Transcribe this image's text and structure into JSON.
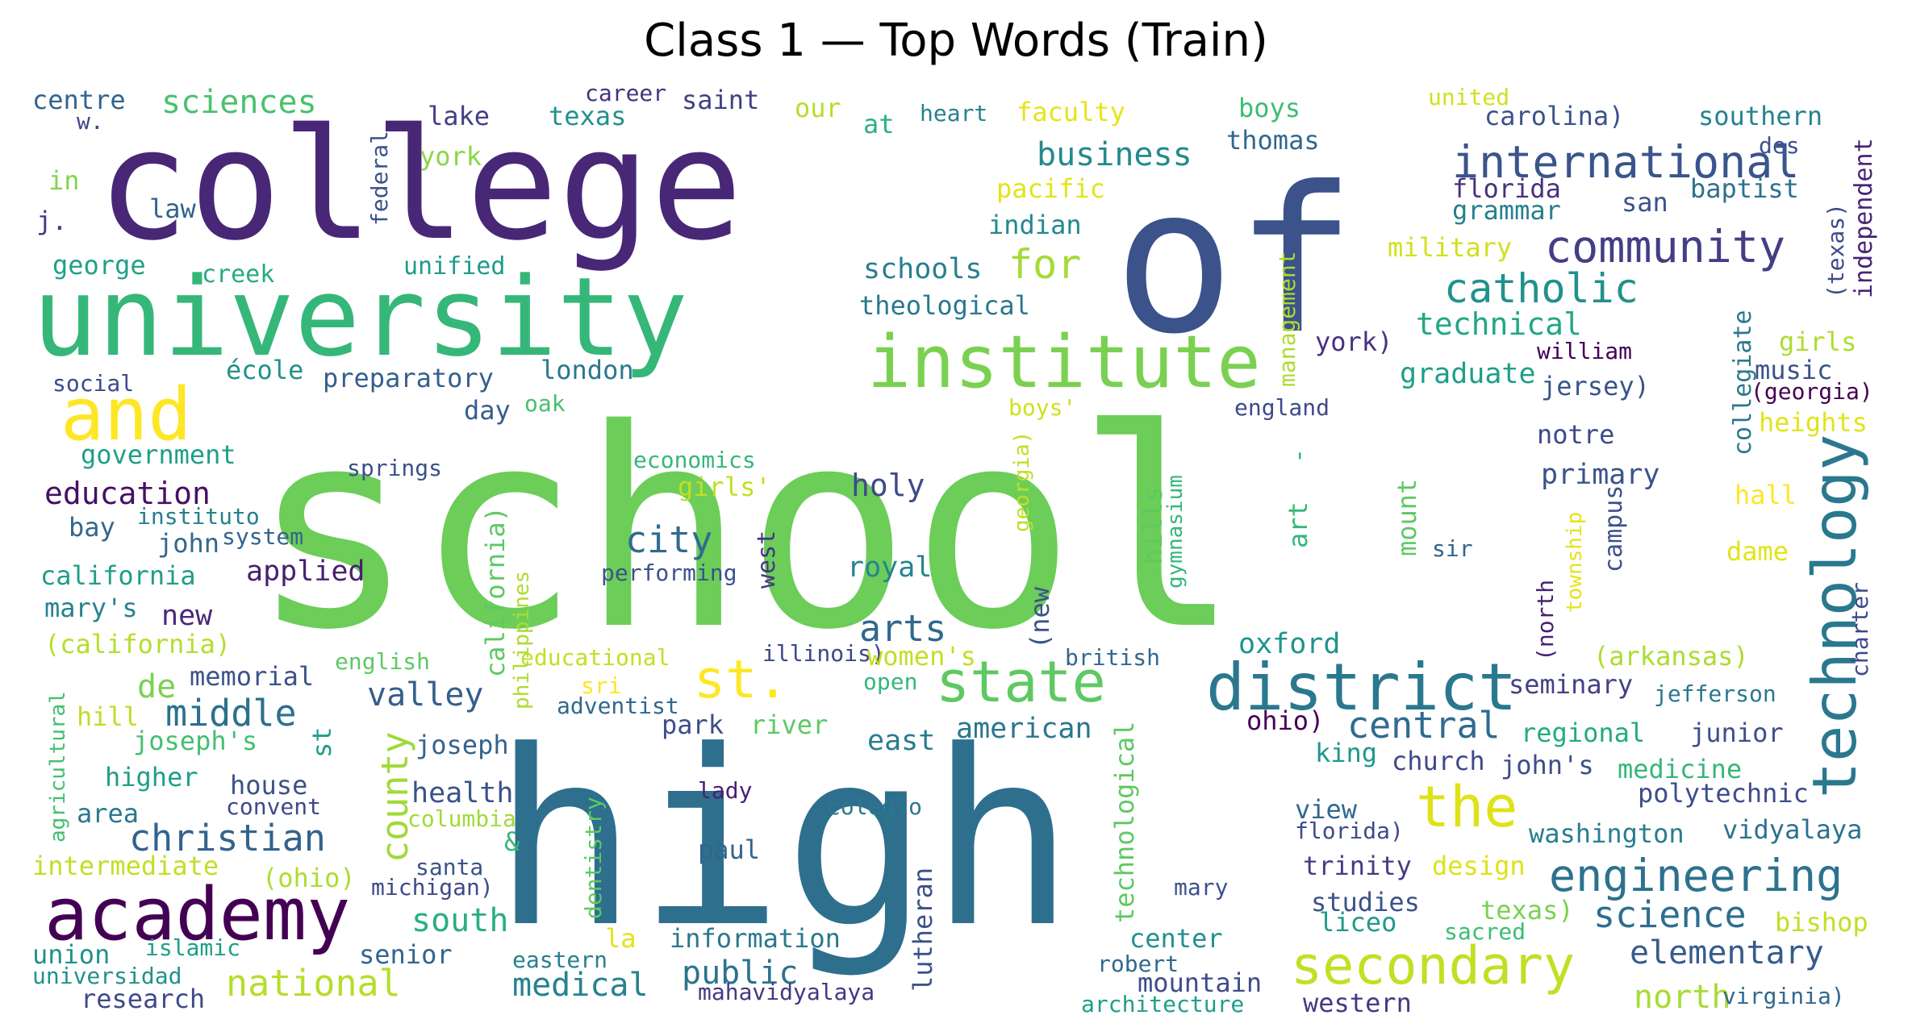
{
  "chart_data": {
    "type": "wordcloud",
    "title": "Class 1 — Top Words (Train)",
    "palette": "viridis",
    "words": [
      {
        "text": "school",
        "color": "#6ccd59"
      },
      {
        "text": "high",
        "color": "#2e6f8e"
      },
      {
        "text": "college",
        "color": "#482777"
      },
      {
        "text": "of",
        "color": "#3b528b"
      },
      {
        "text": "university",
        "color": "#35b779"
      },
      {
        "text": "academy",
        "color": "#440154"
      },
      {
        "text": "institute",
        "color": "#7ad151"
      },
      {
        "text": "district",
        "color": "#2a788e"
      },
      {
        "text": "and",
        "color": "#fde725"
      },
      {
        "text": "technology",
        "color": "#2a788e"
      },
      {
        "text": "secondary",
        "color": "#c2df23"
      },
      {
        "text": "state",
        "color": "#5ec962"
      },
      {
        "text": "the",
        "color": "#dde318"
      },
      {
        "text": "st.",
        "color": "#fde725"
      },
      {
        "text": "engineering",
        "color": "#2c728e"
      },
      {
        "text": "community",
        "color": "#433e85"
      },
      {
        "text": "international",
        "color": "#3a548c"
      },
      {
        "text": "catholic",
        "color": "#21918c"
      },
      {
        "text": "christian",
        "color": "#33638d"
      },
      {
        "text": "county",
        "color": "#9fda3a"
      },
      {
        "text": "middle",
        "color": "#2d708e"
      },
      {
        "text": "arts",
        "color": "#31688e"
      },
      {
        "text": "city",
        "color": "#2f6c8e"
      },
      {
        "text": "national",
        "color": "#b5de2b"
      },
      {
        "text": "central",
        "color": "#2f6b8e"
      },
      {
        "text": "science",
        "color": "#2e6e8e"
      },
      {
        "text": "for",
        "color": "#a5db36"
      },
      {
        "text": "elementary",
        "color": "#365c8d"
      },
      {
        "text": "public",
        "color": "#2c738e"
      },
      {
        "text": "medical",
        "color": "#26828e"
      },
      {
        "text": "business",
        "color": "#238a8d"
      },
      {
        "text": "valley",
        "color": "#355f8d"
      },
      {
        "text": "south",
        "color": "#29af7f"
      },
      {
        "text": "education",
        "color": "#471063"
      },
      {
        "text": "technical",
        "color": "#22a785"
      },
      {
        "text": "sciences",
        "color": "#4ac16d"
      },
      {
        "text": "holy",
        "color": "#3e4a89"
      },
      {
        "text": "north",
        "color": "#a8db34"
      },
      {
        "text": "de",
        "color": "#7ad151"
      },
      {
        "text": "new",
        "color": "#482979"
      },
      {
        "text": "royal",
        "color": "#25858e"
      },
      {
        "text": "graduate",
        "color": "#1f9e89"
      },
      {
        "text": "health",
        "color": "#3b528b"
      },
      {
        "text": "schools",
        "color": "#277f8e"
      },
      {
        "text": "applied",
        "color": "#481f70"
      },
      {
        "text": "primary",
        "color": "#3a538b"
      },
      {
        "text": "oxford",
        "color": "#1f948c"
      },
      {
        "text": "carolina)",
        "color": "#3b528b"
      },
      {
        "text": "american",
        "color": "#2a768e"
      },
      {
        "text": "east",
        "color": "#287c8e"
      },
      {
        "text": "church",
        "color": "#3e4989"
      },
      {
        "text": "john's",
        "color": "#3d4d8a"
      },
      {
        "text": "seminary",
        "color": "#424186"
      },
      {
        "text": "junior",
        "color": "#3c4f8a"
      },
      {
        "text": "polytechnic",
        "color": "#3e4c8a"
      },
      {
        "text": "washington",
        "color": "#277e8e"
      },
      {
        "text": "vidyalaya",
        "color": "#2d718e"
      },
      {
        "text": "regional",
        "color": "#24aa83"
      },
      {
        "text": "medicine",
        "color": "#35b779"
      },
      {
        "text": "king",
        "color": "#1f988b"
      },
      {
        "text": "mountain",
        "color": "#3e4c8a"
      },
      {
        "text": "western",
        "color": "#443a83"
      },
      {
        "text": "research",
        "color": "#3e4a89"
      },
      {
        "text": "studies",
        "color": "#3b528b"
      },
      {
        "text": "liceo",
        "color": "#1f9a8a"
      },
      {
        "text": "trinity",
        "color": "#433d84"
      },
      {
        "text": "design",
        "color": "#dde318"
      },
      {
        "text": "texas)",
        "color": "#7ad151"
      },
      {
        "text": "bishop",
        "color": "#c2df23"
      },
      {
        "text": "thomas",
        "color": "#31688e"
      },
      {
        "text": "florida",
        "color": "#46327e"
      },
      {
        "text": "grammar",
        "color": "#277f8e"
      },
      {
        "text": "baptist",
        "color": "#2c728e"
      },
      {
        "text": "san",
        "color": "#3b528b"
      },
      {
        "text": "southern",
        "color": "#25838e"
      },
      {
        "text": "boys",
        "color": "#3dbc74"
      },
      {
        "text": "faculty",
        "color": "#e5e419"
      },
      {
        "text": "pacific",
        "color": "#e2e418"
      },
      {
        "text": "indian",
        "color": "#23888e"
      },
      {
        "text": "military",
        "color": "#d0e11c"
      },
      {
        "text": "theological",
        "color": "#2a788e"
      },
      {
        "text": "texas",
        "color": "#21918c"
      },
      {
        "text": "lake",
        "color": "#433e85"
      },
      {
        "text": "saint",
        "color": "#424086"
      },
      {
        "text": "our",
        "color": "#b5de2b"
      },
      {
        "text": "at",
        "color": "#2cb17e"
      },
      {
        "text": "career",
        "color": "#46337e"
      },
      {
        "text": "heart",
        "color": "#26828e"
      },
      {
        "text": "united",
        "color": "#d0e11c"
      },
      {
        "text": "des",
        "color": "#3b528b"
      },
      {
        "text": "centre",
        "color": "#33638d"
      },
      {
        "text": "w.",
        "color": "#404688"
      },
      {
        "text": "in",
        "color": "#84d44b"
      },
      {
        "text": "j.",
        "color": "#443983"
      },
      {
        "text": "law",
        "color": "#33638d"
      },
      {
        "text": "york",
        "color": "#8bd646"
      },
      {
        "text": "federal",
        "color": "#3b528b"
      },
      {
        "text": "george",
        "color": "#1fa187"
      },
      {
        "text": "creek",
        "color": "#25ab82"
      },
      {
        "text": "unified",
        "color": "#1e9b8a"
      },
      {
        "text": "social",
        "color": "#3e4a89"
      },
      {
        "text": "école",
        "color": "#21918c"
      },
      {
        "text": "preparatory",
        "color": "#355f8d"
      },
      {
        "text": "london",
        "color": "#2a788e"
      },
      {
        "text": "day",
        "color": "#365d8d"
      },
      {
        "text": "oak",
        "color": "#46c06f"
      },
      {
        "text": "government",
        "color": "#1fa088"
      },
      {
        "text": "springs",
        "color": "#3b528b"
      },
      {
        "text": "economics",
        "color": "#35b779"
      },
      {
        "text": "girls'",
        "color": "#c2df23"
      },
      {
        "text": "bay",
        "color": "#31688e"
      },
      {
        "text": "instituto",
        "color": "#277f8e"
      },
      {
        "text": "john",
        "color": "#31688e"
      },
      {
        "text": "system",
        "color": "#33638d"
      },
      {
        "text": "california",
        "color": "#1f9e89"
      },
      {
        "text": "performing",
        "color": "#3b528b"
      },
      {
        "text": "west",
        "color": "#453781"
      },
      {
        "text": "mary's",
        "color": "#26828e"
      },
      {
        "text": "(california)",
        "color": "#b5de2b"
      },
      {
        "text": "english",
        "color": "#5ec962"
      },
      {
        "text": "educational",
        "color": "#c2df23"
      },
      {
        "text": "illinois)",
        "color": "#3f4788"
      },
      {
        "text": "british",
        "color": "#31688e"
      },
      {
        "text": "memorial",
        "color": "#3b528b"
      },
      {
        "text": "sri",
        "color": "#fde725"
      },
      {
        "text": "open",
        "color": "#35b779"
      },
      {
        "text": "adventist",
        "color": "#31688e"
      },
      {
        "text": "women's",
        "color": "#c2df23"
      },
      {
        "text": "hill",
        "color": "#bddf26"
      },
      {
        "text": "joseph's",
        "color": "#44bf70"
      },
      {
        "text": "st",
        "color": "#1f9e89"
      },
      {
        "text": "joseph",
        "color": "#33638d"
      },
      {
        "text": "park",
        "color": "#3d4e8a"
      },
      {
        "text": "river",
        "color": "#5ec962"
      },
      {
        "text": "higher",
        "color": "#1f9e89"
      },
      {
        "text": "house",
        "color": "#3b528b"
      },
      {
        "text": "convent",
        "color": "#3e4989"
      },
      {
        "text": "area",
        "color": "#2a788e"
      },
      {
        "text": "columbia",
        "color": "#a0da39"
      },
      {
        "text": "lady",
        "color": "#482173"
      },
      {
        "text": "colegio",
        "color": "#2a788e"
      },
      {
        "text": "intermediate",
        "color": "#c2df23"
      },
      {
        "text": "(ohio)",
        "color": "#addc30"
      },
      {
        "text": "santa",
        "color": "#3b528b"
      },
      {
        "text": "michigan)",
        "color": "#3e4a89"
      },
      {
        "text": "paul",
        "color": "#33638d"
      },
      {
        "text": "&",
        "color": "#35b779"
      },
      {
        "text": "dentistry",
        "color": "#5ec962"
      },
      {
        "text": "lutheran",
        "color": "#3b528b"
      },
      {
        "text": "senior",
        "color": "#33638d"
      },
      {
        "text": "la",
        "color": "#e2e418"
      },
      {
        "text": "information",
        "color": "#2a788e"
      },
      {
        "text": "union",
        "color": "#21918c"
      },
      {
        "text": "islamic",
        "color": "#1f9e89"
      },
      {
        "text": "universidad",
        "color": "#21918c"
      },
      {
        "text": "eastern",
        "color": "#277f8e"
      },
      {
        "text": "mahavidyalaya",
        "color": "#453882"
      },
      {
        "text": "robert",
        "color": "#31688e"
      },
      {
        "text": "architecture",
        "color": "#1f9e89"
      },
      {
        "text": "center",
        "color": "#21918c"
      },
      {
        "text": "mary",
        "color": "#3b528b"
      },
      {
        "text": "view",
        "color": "#31688e"
      },
      {
        "text": "florida)",
        "color": "#3e4a89"
      },
      {
        "text": "ohio)",
        "color": "#440154"
      },
      {
        "text": "sacred",
        "color": "#3dbc74"
      },
      {
        "text": "virginia)",
        "color": "#31688e"
      },
      {
        "text": "(arkansas)",
        "color": "#addc30"
      },
      {
        "text": "jefferson",
        "color": "#2a788e"
      },
      {
        "text": "jersey)",
        "color": "#3b528b"
      },
      {
        "text": "notre",
        "color": "#3e4a89"
      },
      {
        "text": "william",
        "color": "#440154"
      },
      {
        "text": "england",
        "color": "#3e4a89"
      },
      {
        "text": "york)",
        "color": "#46327e"
      },
      {
        "text": "girls",
        "color": "#addc30"
      },
      {
        "text": "music",
        "color": "#3b528b"
      },
      {
        "text": "(georgia)",
        "color": "#440154"
      },
      {
        "text": "heights",
        "color": "#e2e418"
      },
      {
        "text": "hall",
        "color": "#fde725"
      },
      {
        "text": "dame",
        "color": "#e2e418"
      },
      {
        "text": "sir",
        "color": "#33638d"
      },
      {
        "text": "boys'",
        "color": "#d0e11c"
      },
      {
        "text": "management",
        "color": "#addc30"
      },
      {
        "text": "independent",
        "color": "#482475"
      },
      {
        "text": "(texas)",
        "color": "#3e4a89"
      },
      {
        "text": "collegiate",
        "color": "#2a788e"
      },
      {
        "text": "campus",
        "color": "#3b528b"
      },
      {
        "text": "township",
        "color": "#e5e419"
      },
      {
        "text": "(north",
        "color": "#481f70"
      },
      {
        "text": "charter",
        "color": "#3e4a89"
      },
      {
        "text": "hills",
        "color": "#5ec962"
      },
      {
        "text": "gymnasium",
        "color": "#35b779"
      },
      {
        "text": "mount",
        "color": "#5ec962"
      },
      {
        "text": "art",
        "color": "#35b779"
      },
      {
        "text": "-",
        "color": "#35b779"
      },
      {
        "text": "georgia)",
        "color": "#bddf26"
      },
      {
        "text": "(new",
        "color": "#3b528b"
      },
      {
        "text": "technological",
        "color": "#5ec962"
      },
      {
        "text": "california)",
        "color": "#5ec962"
      },
      {
        "text": "philippines",
        "color": "#addc30"
      },
      {
        "text": "agricultural",
        "color": "#44bf70"
      }
    ]
  }
}
